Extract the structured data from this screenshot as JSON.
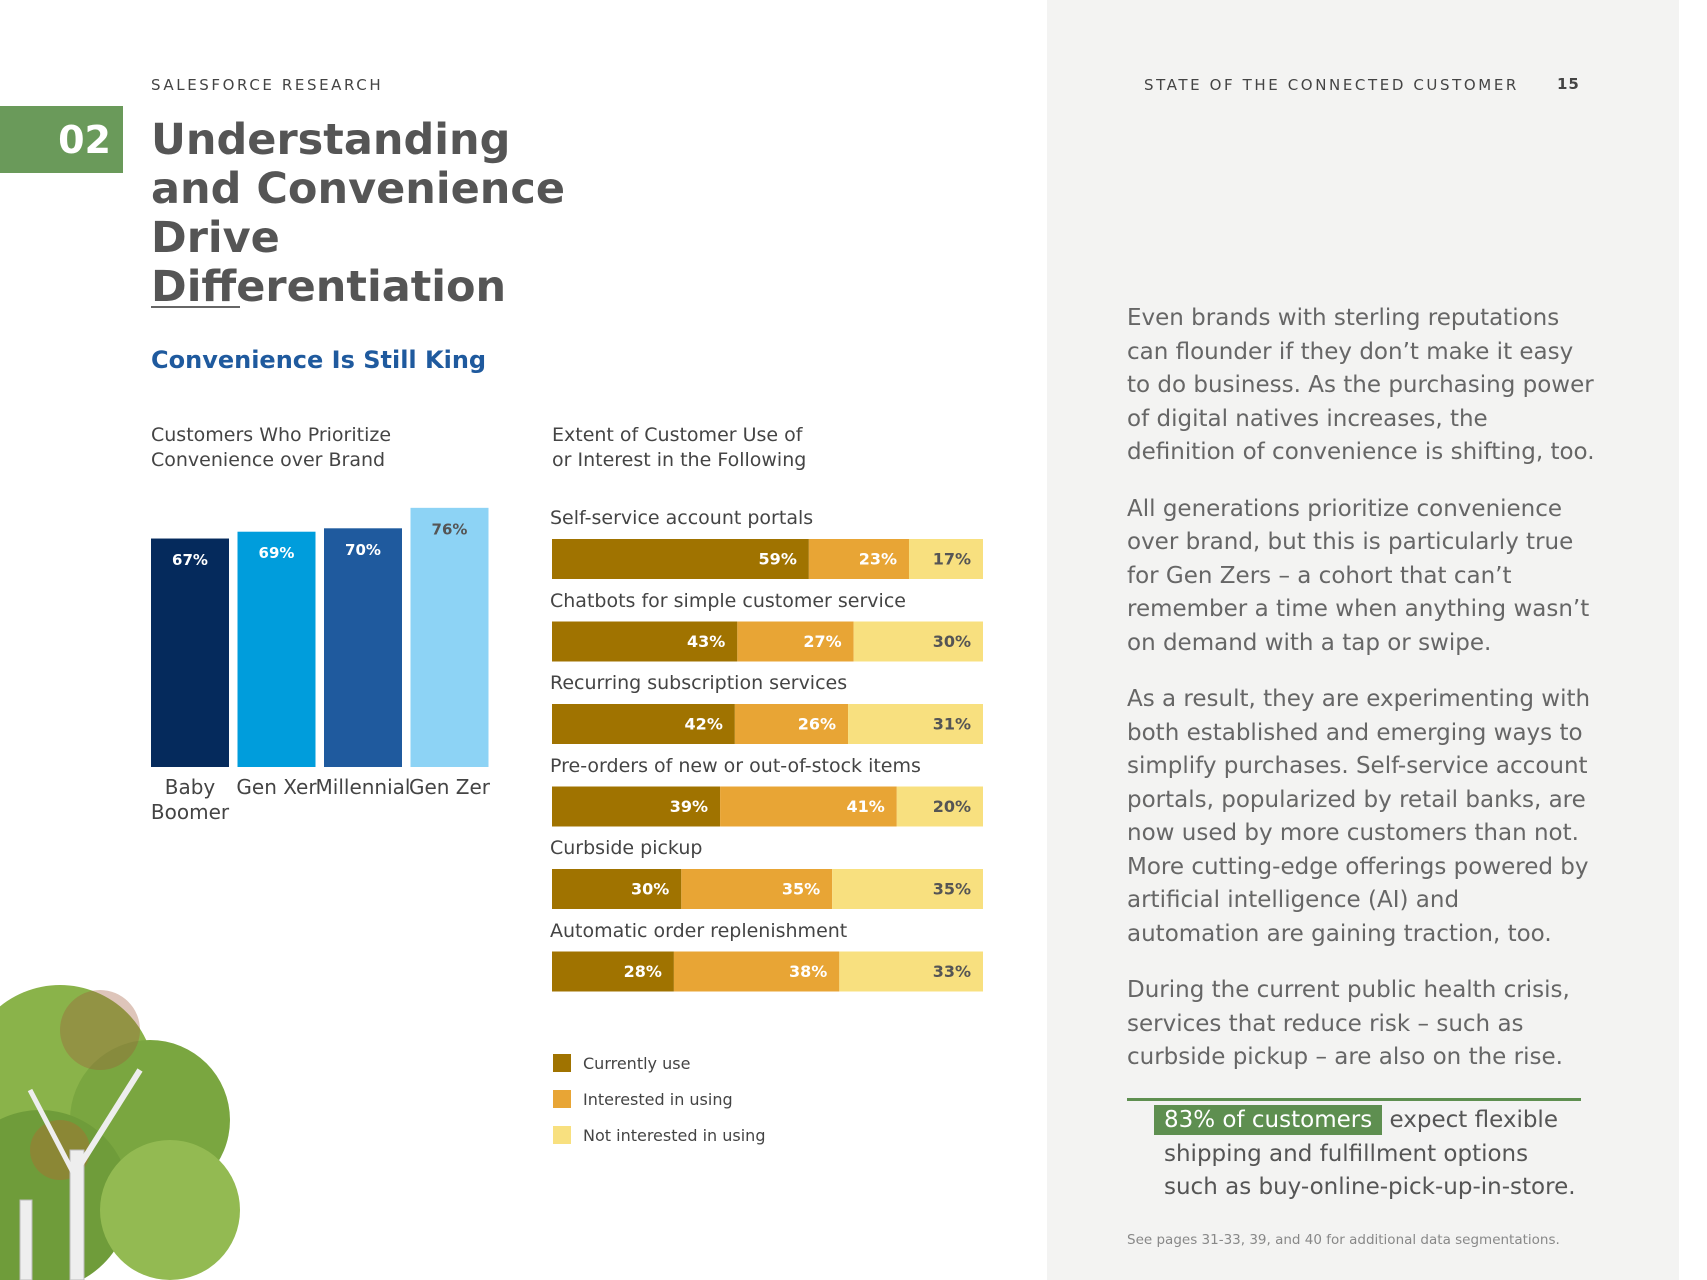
{
  "header": {
    "left": "SALESFORCE RESEARCH",
    "right": "STATE OF THE CONNECTED CUSTOMER",
    "page_number": "15"
  },
  "section": {
    "number": "02",
    "title": "Understanding and Convenience Drive Differentiation",
    "heading": "Convenience Is Still King"
  },
  "chart_data": [
    {
      "type": "bar",
      "title": "Customers Who Prioritize Convenience over Brand",
      "categories": [
        "Baby Boomer",
        "Gen Xer",
        "Millennial",
        "Gen Zer"
      ],
      "values": [
        67,
        69,
        70,
        76
      ],
      "value_labels": [
        "67%",
        "69%",
        "70%",
        "76%"
      ],
      "colors": [
        "#052a5c",
        "#009ddc",
        "#1f5a9e",
        "#8dd3f5"
      ]
    },
    {
      "type": "barh",
      "stacked": true,
      "title": "Extent of Customer Use of or Interest in the Following",
      "categories": [
        "Self-service account portals",
        "Chatbots for simple customer service",
        "Recurring subscription services",
        "Pre-orders of new or out-of-stock items",
        "Curbside pickup",
        "Automatic order replenishment"
      ],
      "series": [
        {
          "name": "Currently use",
          "color": "#a07300",
          "values": [
            59,
            43,
            42,
            39,
            30,
            28
          ],
          "value_labels": [
            "59%",
            "43%",
            "42%",
            "39%",
            "30%",
            "28%"
          ]
        },
        {
          "name": "Interested in using",
          "color": "#e8a535",
          "values": [
            23,
            27,
            26,
            41,
            35,
            38
          ],
          "value_labels": [
            "23%",
            "27%",
            "26%",
            "41%",
            "35%",
            "38%"
          ]
        },
        {
          "name": "Not interested in using",
          "color": "#f8e07f",
          "values": [
            17,
            30,
            31,
            20,
            35,
            33
          ],
          "value_labels": [
            "17%",
            "30%",
            "31%",
            "20%",
            "35%",
            "33%"
          ]
        }
      ]
    }
  ],
  "body": {
    "paragraphs": [
      "Even brands with sterling reputations can flounder if they don’t make it easy to do business. As the purchasing power of digital natives increases, the definition of convenience is shifting, too.",
      "All generations prioritize convenience over brand, but this is particularly true for Gen Zers – a cohort that can’t remember a time when anything wasn’t on demand with a tap or swipe.",
      "As a result, they are experimenting with both established and emerging ways to simplify purchases. Self-service account portals, popularized by retail banks, are now used by more customers than not. More cutting-edge offerings powered by artificial intelligence (AI) and automation are gaining traction, too.",
      "During the current public health crisis, services that reduce risk – such as curbside pickup – are also on the rise."
    ],
    "callout": {
      "highlight": "83% of customers",
      "text": "expect flexible shipping and fulfillment options such as buy-online-pick-up-in-store."
    },
    "footnote": "See pages 31-33, 39, and 40 for additional data segmentations."
  }
}
